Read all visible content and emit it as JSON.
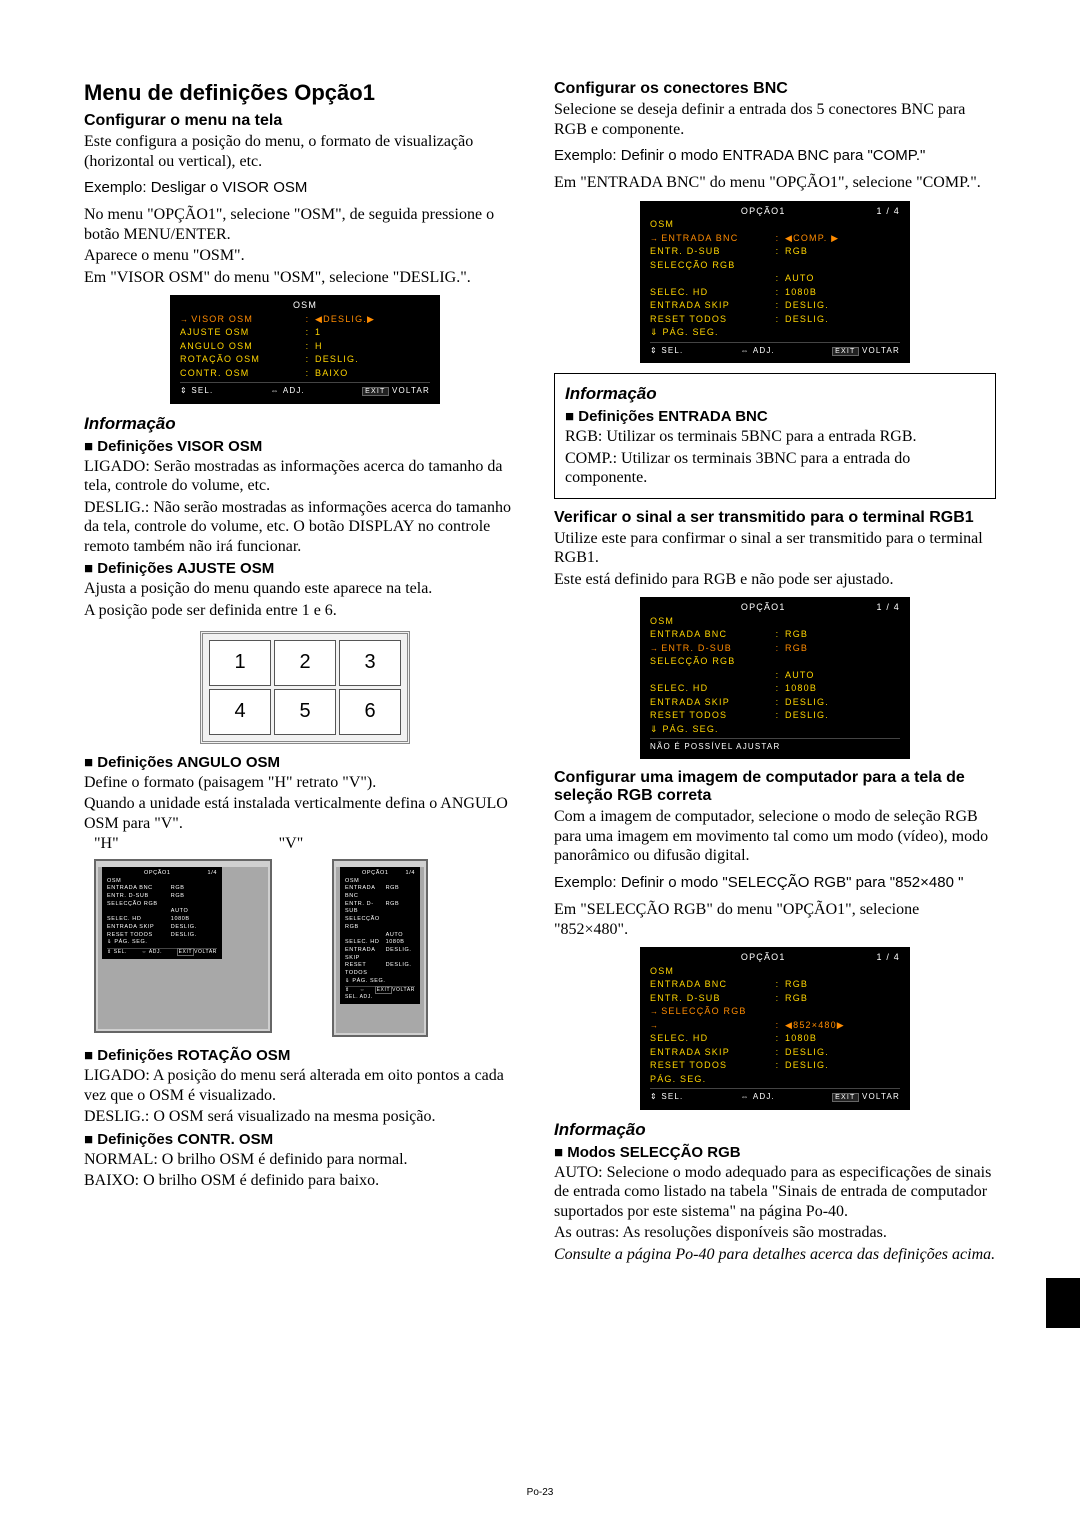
{
  "pageNumber": "Po-23",
  "left": {
    "h1": "Menu de definições Opção1",
    "h2a": "Configurar o menu na tela",
    "p1": "Este configura a posição do menu, o formato de visualização (horizontal ou vertical), etc.",
    "p2": "Exemplo: Desligar o VISOR OSM",
    "p3": "No menu \"OPÇÃO1\", selecione \"OSM\", de seguida pressione o botão MENU/ENTER.",
    "p4": "Aparece o menu \"OSM\".",
    "p5": "Em \"VISOR OSM\" do menu \"OSM\", selecione \"DESLIG.\".",
    "osd1": {
      "title": "OSM",
      "rows": [
        {
          "l": "VISOR OSM",
          "c": ":",
          "r": "◀DESLIG.▶",
          "sel": true
        },
        {
          "l": "AJUSTE OSM",
          "c": ":",
          "r": "1",
          "y": true
        },
        {
          "l": "ANGULO OSM",
          "c": ":",
          "r": "H",
          "y": true
        },
        {
          "l": "ROTAÇÃO OSM",
          "c": ":",
          "r": "DESLIG.",
          "y": true
        },
        {
          "l": "CONTR. OSM",
          "c": ":",
          "r": "BAIXO",
          "y": true
        }
      ],
      "foot": {
        "sel": "⇕ SEL.",
        "adj": "⇔ ADJ.",
        "exit": "EXIT",
        "ret": "VOLTAR"
      }
    },
    "info1_title": "Informação",
    "sub1": "Definições VISOR OSM",
    "sub1_p1": "LIGADO: Serão mostradas as informações acerca do tamanho da tela, controle do volume, etc.",
    "sub1_p2": "DESLIG.: Não serão mostradas as informações acerca do tamanho da tela, controle do volume, etc. O botão DISPLAY no controle remoto também não irá funcionar.",
    "sub2": "Definições AJUSTE OSM",
    "sub2_p1": "Ajusta a posição do menu quando este aparece na tela.",
    "sub2_p2": "A posição pode ser definida entre 1 e 6.",
    "grid": [
      "1",
      "2",
      "3",
      "4",
      "5",
      "6"
    ],
    "sub3": "Definições ANGULO OSM",
    "sub3_p1": "Define o formato (paisagem \"H\" retrato \"V\").",
    "sub3_p2": "Quando a unidade está instalada verticalmente defina o ANGULO OSM para \"V\".",
    "h_label": "\"H\"",
    "v_label": "\"V\"",
    "mini": {
      "title": "OPÇÃO1",
      "tr": "1/4",
      "rows": [
        {
          "l": "OSM",
          "r": ""
        },
        {
          "l": "ENTRADA BNC",
          "r": "RGB"
        },
        {
          "l": "ENTR. D-SUB",
          "r": "RGB"
        },
        {
          "l": "SELECÇÃO RGB",
          "r": ""
        },
        {
          "l": "",
          "r": "AUTO"
        },
        {
          "l": "SELEC. HD",
          "r": "1080B"
        },
        {
          "l": "ENTRADA SKIP",
          "r": "DESLIG."
        },
        {
          "l": "RESET TODOS",
          "r": "DESLIG."
        },
        {
          "l": "⇓ PÁG. SEG.",
          "r": ""
        }
      ]
    },
    "sub4": "Definições ROTAÇÃO OSM",
    "sub4_p1": "LIGADO: A posição do menu será alterada em oito pontos a cada vez que o OSM é visualizado.",
    "sub4_p2": "DESLIG.: O OSM será visualizado na mesma posição.",
    "sub5": "Definições CONTR. OSM",
    "sub5_p1": "NORMAL: O brilho OSM é definido para normal.",
    "sub5_p2": "BAIXO: O brilho OSM é definido para baixo."
  },
  "right": {
    "h2a": "Configurar os conectores BNC",
    "p1": "Selecione se deseja definir a entrada dos 5 conectores BNC para RGB e componente.",
    "p2": "Exemplo: Definir o modo ENTRADA BNC para \"COMP.\"",
    "p3": "Em \"ENTRADA BNC\" do menu \"OPÇÃO1\", selecione \"COMP.\".",
    "osd2": {
      "title": "OPÇÃO1",
      "tr": "1 / 4",
      "rows": [
        {
          "l": "OSM",
          "c": "",
          "r": "",
          "y": true
        },
        {
          "l": "ENTRADA BNC",
          "c": ":",
          "r": "◀COMP. ▶",
          "sel": true
        },
        {
          "l": "ENTR. D-SUB",
          "c": ":",
          "r": "RGB",
          "y": true
        },
        {
          "l": "SELECÇÃO RGB",
          "c": "",
          "r": "",
          "y": true
        },
        {
          "l": "",
          "c": ":",
          "r": "AUTO",
          "y": true
        },
        {
          "l": "SELEC. HD",
          "c": ":",
          "r": "1080B",
          "y": true
        },
        {
          "l": "ENTRADA SKIP",
          "c": ":",
          "r": "DESLIG.",
          "y": true
        },
        {
          "l": "RESET TODOS",
          "c": ":",
          "r": "DESLIG.",
          "y": true
        },
        {
          "l": "  ⇓ PÁG. SEG.",
          "c": "",
          "r": "",
          "y": true
        }
      ],
      "foot": {
        "sel": "⇕ SEL.",
        "adj": "⇔ ADJ.",
        "exit": "EXIT",
        "ret": "VOLTAR"
      }
    },
    "info2_title": "Informação",
    "sub_r1": "Definições ENTRADA BNC",
    "sub_r1_p1": "RGB: Utilizar os terminais 5BNC para a entrada RGB.",
    "sub_r1_p2": "COMP.: Utilizar os terminais 3BNC para a entrada do componente.",
    "h2b": "Verificar o sinal a ser transmitido para o terminal RGB1",
    "p4": "Utilize este para confirmar o sinal a ser transmitido para o terminal RGB1.",
    "p5": "Este está definido para RGB e não pode ser ajustado.",
    "osd3": {
      "title": "OPÇÃO1",
      "tr": "1 / 4",
      "rows": [
        {
          "l": "OSM",
          "c": "",
          "r": "",
          "y": true
        },
        {
          "l": "ENTRADA BNC",
          "c": ":",
          "r": "RGB",
          "y": true
        },
        {
          "l": "ENTR. D-SUB",
          "c": ":",
          "r": "RGB",
          "sel": true
        },
        {
          "l": "SELECÇÃO RGB",
          "c": "",
          "r": "",
          "y": true
        },
        {
          "l": "",
          "c": ":",
          "r": "AUTO",
          "y": true
        },
        {
          "l": "SELEC. HD",
          "c": ":",
          "r": "1080B",
          "y": true
        },
        {
          "l": "ENTRADA SKIP",
          "c": ":",
          "r": "DESLIG.",
          "y": true
        },
        {
          "l": "RESET TODOS",
          "c": ":",
          "r": "DESLIG.",
          "y": true
        },
        {
          "l": "  ⇓ PÁG. SEG.",
          "c": "",
          "r": "",
          "y": true
        }
      ],
      "foot2": "NÃO É POSSÍVEL AJUSTAR"
    },
    "h2c": "Configurar uma imagem de computador para a tela de seleção RGB correta",
    "p6": "Com a imagem de computador, selecione o modo de seleção RGB para uma imagem em movimento tal como um modo (vídeo), modo panorâmico ou difusão digital.",
    "p7": "Exemplo: Definir o modo \"SELECÇÃO RGB\" para \"852×480 \"",
    "p8": "Em \"SELECÇÃO RGB\" do menu \"OPÇÃO1\", selecione \"852×480\".",
    "osd4": {
      "title": "OPÇÃO1",
      "tr": "1 / 4",
      "rows": [
        {
          "l": "OSM",
          "c": "",
          "r": "",
          "y": true
        },
        {
          "l": "ENTRADA BNC",
          "c": ":",
          "r": "RGB",
          "y": true
        },
        {
          "l": "ENTR. D-SUB",
          "c": ":",
          "r": "RGB",
          "y": true
        },
        {
          "l": "SELECÇÃO RGB",
          "c": "",
          "r": "",
          "sel": true
        },
        {
          "l": "",
          "c": ":",
          "r": "◀852×480▶",
          "sel": true
        },
        {
          "l": "SELEC. HD",
          "c": ":",
          "r": "1080B",
          "y": true
        },
        {
          "l": "ENTRADA SKIP",
          "c": ":",
          "r": "DESLIG.",
          "y": true
        },
        {
          "l": "RESET TODOS",
          "c": ":",
          "r": "DESLIG.",
          "y": true
        },
        {
          "l": "  PÁG. SEG.",
          "c": "",
          "r": "",
          "y": true
        }
      ],
      "foot": {
        "sel": "⇕ SEL.",
        "adj": "⇔ ADJ.",
        "exit": "EXIT",
        "ret": "VOLTAR"
      }
    },
    "info3_title": "Informação",
    "sub_r2": "Modos SELECÇÃO RGB",
    "sub_r2_p1": "AUTO: Selecione o modo adequado para as especificações de sinais de entrada como listado na tabela \"Sinais de entrada de computador suportados por este sistema\" na página Po-40.",
    "sub_r2_p2": "As outras: As resoluções disponíveis são mostradas.",
    "sub_r2_p3": "Consulte a página Po-40 para detalhes acerca das definições acima."
  }
}
